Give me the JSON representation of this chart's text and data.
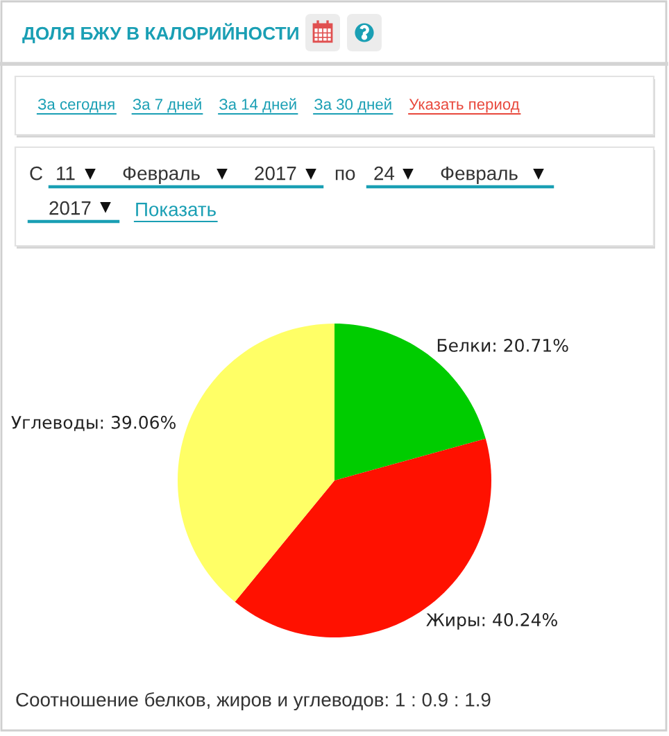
{
  "chart_data": {
    "type": "pie",
    "title": "ДОЛЯ БЖУ В КАЛОРИЙНОСТИ",
    "categories": [
      "Белки",
      "Жиры",
      "Углеводы"
    ],
    "values": [
      20.71,
      40.24,
      39.06
    ],
    "colors": [
      "#00cc00",
      "#ff1100",
      "#ffff66"
    ],
    "value_labels": [
      "20.71%",
      "40.24%",
      "39.06%"
    ],
    "annotations": [
      "За сегодня",
      "За 7 дней",
      "За 14 дней",
      "За 30 дней",
      "Указать период",
      "С",
      "11",
      "Февраль",
      "2017",
      "по",
      "24",
      "Февраль",
      "2017",
      "Показать",
      "Соотношение белков, жиров и углеводов: 1 : 0.9 : 1.9"
    ]
  }
}
